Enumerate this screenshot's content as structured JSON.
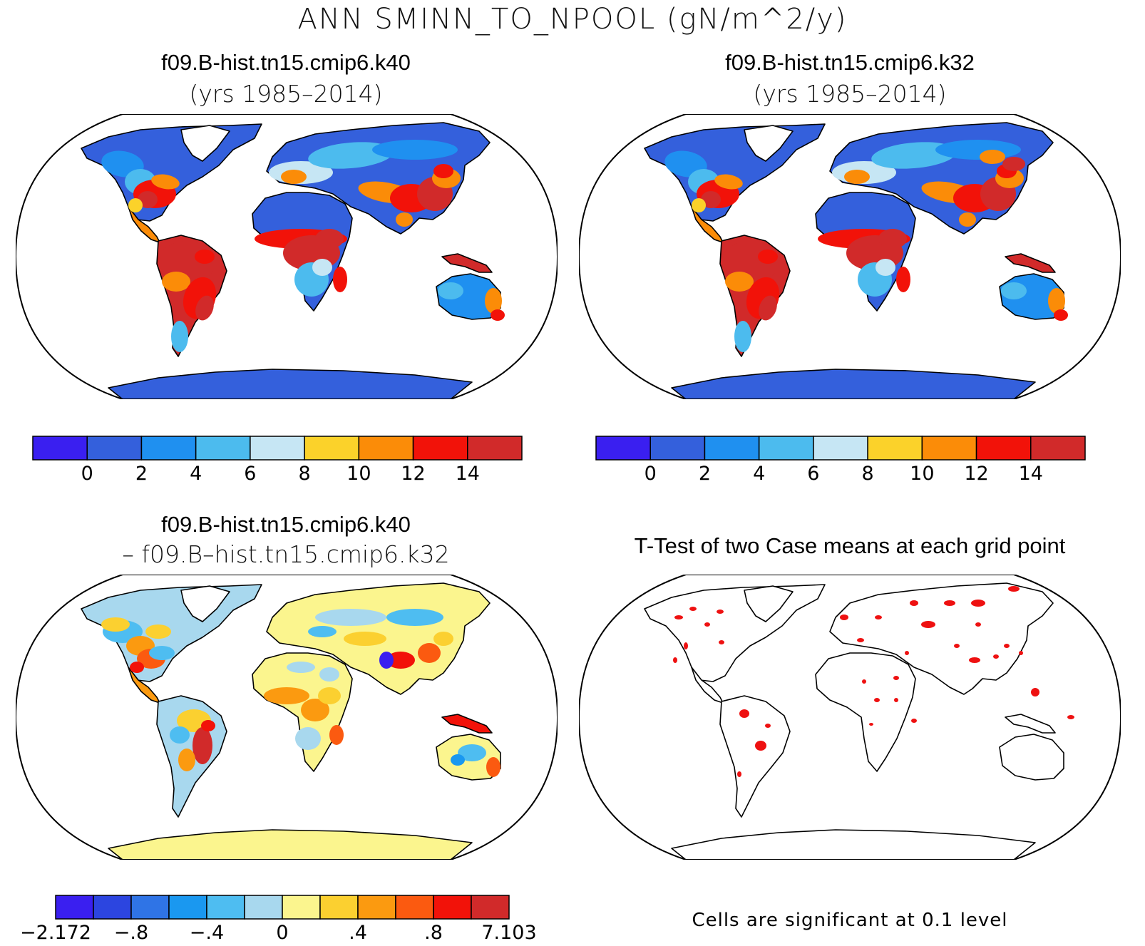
{
  "main_title": "ANN SMINN_TO_NPOOL (gN/m^2/y)",
  "panels": {
    "top_left": {
      "title": "f09.B-hist.tn15.cmip6.k40",
      "subtitle": "(yrs 1985–2014)"
    },
    "top_right": {
      "title": "f09.B-hist.tn15.cmip6.k32",
      "subtitle": "(yrs 1985–2014)"
    },
    "bottom_left": {
      "title": "f09.B-hist.tn15.cmip6.k40",
      "subtitle": "– f09.B–hist.tn15.cmip6.k32"
    },
    "bottom_right": {
      "title": "T-Test of two Case means at each grid point"
    }
  },
  "footnote": "Cells are significant at 0.1 level",
  "chart_data": {
    "type": "heatmap",
    "colorbars": [
      {
        "panel": "top_left",
        "colors": [
          "#3a1ff0",
          "#3460dc",
          "#1f90f0",
          "#4cbbee",
          "#c6e6f4",
          "#fbd22a",
          "#fb8c08",
          "#f21209",
          "#d12a2a"
        ],
        "tick_labels": [
          "0",
          "2",
          "4",
          "6",
          "8",
          "10",
          "12",
          "14"
        ]
      },
      {
        "panel": "top_right",
        "colors": [
          "#3a1ff0",
          "#3460dc",
          "#1f90f0",
          "#4cbbee",
          "#c6e6f4",
          "#fbd22a",
          "#fb8c08",
          "#f21209",
          "#d12a2a"
        ],
        "tick_labels": [
          "0",
          "2",
          "4",
          "6",
          "8",
          "10",
          "12",
          "14"
        ]
      },
      {
        "panel": "bottom_left",
        "colors": [
          "#3a1ff0",
          "#2c45e0",
          "#2f74e6",
          "#1a98f0",
          "#4ebdf1",
          "#a8d8ee",
          "#fbf58e",
          "#fbd030",
          "#fb9a10",
          "#fb5a10",
          "#f21209",
          "#d12a2a"
        ],
        "tick_labels": [
          "−2.172",
          "−.8",
          "−.4",
          "0",
          ".4",
          ".8",
          "7.103"
        ]
      }
    ],
    "significance_color": "#ee1111"
  }
}
